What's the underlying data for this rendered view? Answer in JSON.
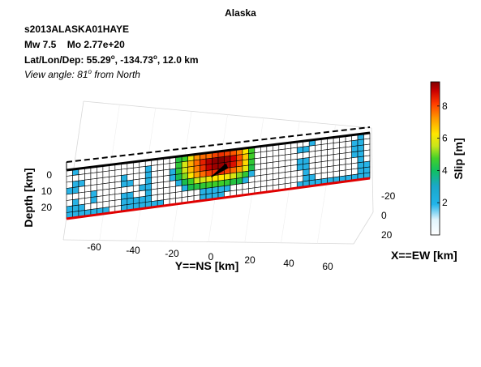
{
  "chart_data": {
    "type": "heatmap",
    "title": "Alaska",
    "event_id": "s2013ALASKA01HAYE",
    "magnitude_line": {
      "mw_label": "Mw 7.5",
      "mo_label": "Mo 2.77e+20"
    },
    "location_line": {
      "prefix": "Lat/Lon/Dep: 55.29",
      "lon": ", -134.73",
      "dep": ", 12.0 km",
      "deg": "o"
    },
    "view_line": {
      "prefix": "View angle:  81",
      "suffix": " from North",
      "deg": "o"
    },
    "xlabel": "Y==NS [km]",
    "ylabel": "Depth [km]",
    "zlabel": "X==EW [km]",
    "x_ticks": [
      "-60",
      "-40",
      "-20",
      "0",
      "20",
      "40",
      "60"
    ],
    "x_range": [
      -75,
      75
    ],
    "depth_ticks": [
      "0",
      "10",
      "20"
    ],
    "depth_range": [
      0,
      25
    ],
    "ew_ticks": [
      "-20",
      "0",
      "20"
    ],
    "colorbar": {
      "label": "Slip [m]",
      "ticks": [
        "2",
        "4",
        "6",
        "8"
      ],
      "range": [
        0,
        9.5
      ]
    },
    "grid": true,
    "slip_grid": [
      [
        0,
        1.3,
        0,
        0,
        0,
        0,
        0,
        0,
        0,
        0,
        0,
        0,
        0,
        0,
        0,
        0,
        0,
        0,
        3.2,
        3.6,
        5,
        6.4,
        7,
        7,
        7.6,
        7.8,
        7.6,
        7.3,
        6.6,
        5.2,
        3.6,
        0,
        0,
        0,
        0,
        0,
        0,
        0,
        0,
        0,
        1.3,
        0,
        0,
        0,
        0,
        0,
        0,
        0,
        1.4,
        0
      ],
      [
        0,
        0,
        0,
        0,
        0,
        0,
        0,
        0,
        0,
        0,
        0,
        0,
        0,
        1.3,
        0,
        0,
        0,
        0,
        3.4,
        4.6,
        6,
        7,
        8,
        8.8,
        9.3,
        9.5,
        9.2,
        8.4,
        7.4,
        5.6,
        3.6,
        0,
        0,
        0,
        0,
        0,
        0,
        0,
        1.3,
        1.4,
        0,
        0,
        0,
        0,
        0,
        0,
        0,
        1.3,
        1.4,
        0
      ],
      [
        0,
        1.4,
        1.3,
        0,
        0,
        0,
        0,
        0,
        0,
        1.5,
        0,
        0,
        0,
        1.4,
        0,
        0,
        0,
        1.5,
        3.3,
        4.5,
        5.8,
        6.8,
        7.8,
        8.6,
        9.1,
        9.2,
        8.9,
        8.2,
        7.2,
        5.4,
        3.4,
        0,
        0,
        0,
        0,
        0,
        0,
        0,
        0,
        0,
        0,
        0,
        0,
        0,
        0,
        0,
        0,
        1.3,
        1.4,
        0
      ],
      [
        1.3,
        1.4,
        0,
        0,
        0,
        0,
        0,
        0,
        0,
        1.4,
        1.3,
        0,
        0,
        1.5,
        0,
        0,
        0,
        1.3,
        3,
        4,
        5.2,
        6.2,
        7,
        7.6,
        7.9,
        7.9,
        7.6,
        7,
        6.2,
        4.9,
        3.1,
        0,
        0,
        0,
        0,
        0,
        0,
        0,
        1.3,
        1.4,
        0,
        0,
        0,
        0,
        0,
        0,
        0,
        1.4,
        1.3,
        0
      ],
      [
        0,
        0,
        0,
        0,
        1.3,
        0,
        0,
        0,
        0,
        0,
        0,
        0,
        1.4,
        1.3,
        0,
        0,
        0,
        0,
        1.4,
        3,
        3.6,
        4.4,
        4.6,
        5,
        5.2,
        5.2,
        5,
        4.6,
        4,
        3.4,
        1.5,
        0,
        0,
        0,
        0,
        0,
        0,
        0,
        1.3,
        1.4,
        0,
        0,
        0,
        0,
        0,
        0,
        0,
        0,
        1.4,
        0
      ],
      [
        0,
        1.3,
        0,
        0,
        1.3,
        0,
        0,
        0,
        0,
        1.3,
        1.3,
        0,
        0,
        1.4,
        0,
        0,
        0,
        0,
        0,
        1.4,
        3,
        3.2,
        3.4,
        3.6,
        3.6,
        3.6,
        3.4,
        3.2,
        3,
        1.4,
        0,
        0,
        0,
        0,
        0,
        0,
        0,
        0,
        0,
        1.3,
        0,
        0,
        0,
        0,
        0,
        0,
        0,
        0,
        1.4,
        1.3
      ],
      [
        1.3,
        1.4,
        1.3,
        0,
        0,
        0,
        0,
        0,
        0,
        1.3,
        1.4,
        1.3,
        1.3,
        1.4,
        0,
        0,
        0,
        0,
        0,
        0,
        0,
        0,
        1.3,
        1.4,
        1.3,
        1.3,
        1.3,
        0,
        0,
        0,
        0,
        0,
        0,
        0,
        0,
        0,
        0,
        0,
        0,
        1.4,
        1.3,
        0,
        0,
        0,
        0,
        0,
        0,
        0,
        1.4,
        1.3
      ],
      [
        1.3,
        1.4,
        1.3,
        1.3,
        1.4,
        1.3,
        1.3,
        0,
        0,
        1.4,
        1.3,
        1.4,
        1.3,
        1.4,
        1.3,
        1.3,
        0,
        0,
        0,
        0,
        0,
        0,
        1.4,
        1.3,
        1.3,
        1.4,
        0,
        0,
        0,
        0,
        0,
        0,
        0,
        0,
        0,
        0,
        0,
        0,
        1.3,
        1.4,
        1.3,
        1.3,
        1.3,
        1.4,
        1.3,
        1.3,
        1.3,
        1.3,
        1.4,
        1.4
      ]
    ]
  }
}
